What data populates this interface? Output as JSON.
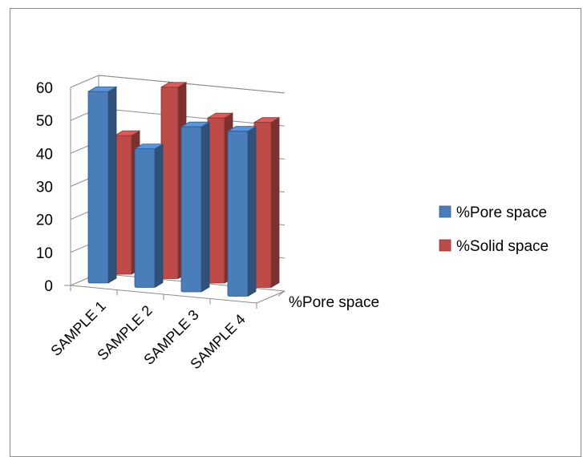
{
  "chart_data": {
    "type": "bar",
    "style": "3d-clustered-column",
    "title": "",
    "categories": [
      "SAMPLE 1",
      "SAMPLE 2",
      "SAMPLE 3",
      "SAMPLE 4"
    ],
    "series": [
      {
        "name": "%Pore space",
        "values": [
          58,
          42,
          50,
          50
        ],
        "color": "#4A7EBB"
      },
      {
        "name": "%Solid space",
        "values": [
          42,
          58,
          50,
          50
        ],
        "color": "#BE4B48"
      }
    ],
    "depth_axis_label": "%Pore space",
    "ylim": [
      0,
      60
    ],
    "yticks": [
      0,
      10,
      20,
      30,
      40,
      50,
      60
    ],
    "grid": true,
    "legend_position": "right"
  }
}
